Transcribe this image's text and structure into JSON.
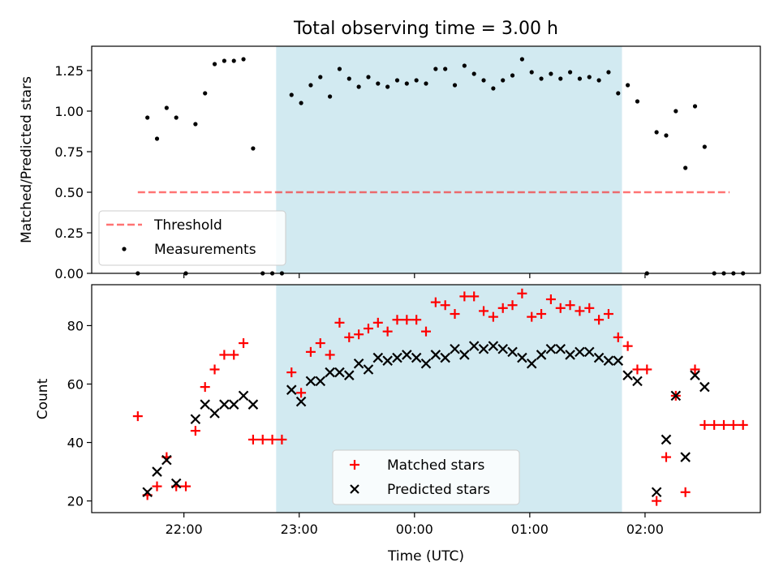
{
  "title": "Total observing time = 3.00 h",
  "xlabel": "Time (UTC)",
  "x_ticks": [
    "22:00",
    "23:00",
    "00:00",
    "01:00",
    "02:00"
  ],
  "colors": {
    "window": "#add8e6",
    "threshold": "#ff0000",
    "measurement": "#000000",
    "matched": "#ff0000",
    "predicted": "#000000"
  },
  "chart_data": [
    {
      "type": "scatter",
      "ylabel": "Matched/Predicted stars",
      "xlim": [
        "21:12",
        "03:00"
      ],
      "ylim": [
        0,
        1.4
      ],
      "y_ticks": [
        "0.00",
        "0.25",
        "0.50",
        "0.75",
        "1.00",
        "1.25"
      ],
      "observing_window": [
        "22:48",
        "01:48"
      ],
      "legend_position": "lower-left",
      "threshold": {
        "name": "Threshold",
        "value": 0.5,
        "x_range": [
          "21:36",
          "02:44"
        ]
      },
      "series": [
        {
          "name": "Measurements",
          "points": [
            [
              "21:36",
              0.0
            ],
            [
              "21:41",
              0.96
            ],
            [
              "21:46",
              0.83
            ],
            [
              "21:51",
              1.02
            ],
            [
              "21:56",
              0.96
            ],
            [
              "22:01",
              0.0
            ],
            [
              "22:06",
              0.92
            ],
            [
              "22:11",
              1.11
            ],
            [
              "22:16",
              1.29
            ],
            [
              "22:21",
              1.31
            ],
            [
              "22:26",
              1.31
            ],
            [
              "22:31",
              1.32
            ],
            [
              "22:36",
              0.77
            ],
            [
              "22:41",
              0.0
            ],
            [
              "22:46",
              0.0
            ],
            [
              "22:51",
              0.0
            ],
            [
              "22:56",
              1.1
            ],
            [
              "23:01",
              1.05
            ],
            [
              "23:06",
              1.16
            ],
            [
              "23:11",
              1.21
            ],
            [
              "23:16",
              1.09
            ],
            [
              "23:21",
              1.26
            ],
            [
              "23:26",
              1.2
            ],
            [
              "23:31",
              1.15
            ],
            [
              "23:36",
              1.21
            ],
            [
              "23:41",
              1.17
            ],
            [
              "23:46",
              1.15
            ],
            [
              "23:51",
              1.19
            ],
            [
              "23:56",
              1.17
            ],
            [
              "00:01",
              1.19
            ],
            [
              "00:06",
              1.17
            ],
            [
              "00:11",
              1.26
            ],
            [
              "00:16",
              1.26
            ],
            [
              "00:21",
              1.16
            ],
            [
              "00:26",
              1.28
            ],
            [
              "00:31",
              1.23
            ],
            [
              "00:36",
              1.19
            ],
            [
              "00:41",
              1.14
            ],
            [
              "00:46",
              1.19
            ],
            [
              "00:51",
              1.22
            ],
            [
              "00:56",
              1.32
            ],
            [
              "01:01",
              1.24
            ],
            [
              "01:06",
              1.2
            ],
            [
              "01:11",
              1.23
            ],
            [
              "01:16",
              1.2
            ],
            [
              "01:21",
              1.24
            ],
            [
              "01:26",
              1.2
            ],
            [
              "01:31",
              1.21
            ],
            [
              "01:36",
              1.19
            ],
            [
              "01:41",
              1.24
            ],
            [
              "01:46",
              1.11
            ],
            [
              "01:51",
              1.16
            ],
            [
              "01:56",
              1.06
            ],
            [
              "02:01",
              0.0
            ],
            [
              "02:06",
              0.87
            ],
            [
              "02:11",
              0.85
            ],
            [
              "02:16",
              1.0
            ],
            [
              "02:21",
              0.65
            ],
            [
              "02:26",
              1.03
            ],
            [
              "02:31",
              0.78
            ],
            [
              "02:36",
              0.0
            ],
            [
              "02:41",
              0.0
            ],
            [
              "02:46",
              0.0
            ],
            [
              "02:51",
              0.0
            ]
          ]
        }
      ]
    },
    {
      "type": "scatter",
      "ylabel": "Count",
      "xlim": [
        "21:12",
        "03:00"
      ],
      "ylim": [
        16,
        94
      ],
      "y_ticks": [
        "20",
        "40",
        "60",
        "80"
      ],
      "observing_window": [
        "22:48",
        "01:48"
      ],
      "legend_position": "lower-center",
      "series": [
        {
          "name": "Matched stars",
          "marker": "plus",
          "points": [
            [
              "21:36",
              49
            ],
            [
              "21:41",
              22
            ],
            [
              "21:46",
              25
            ],
            [
              "21:51",
              35
            ],
            [
              "21:56",
              25
            ],
            [
              "22:01",
              25
            ],
            [
              "22:06",
              44
            ],
            [
              "22:11",
              59
            ],
            [
              "22:16",
              65
            ],
            [
              "22:21",
              70
            ],
            [
              "22:26",
              70
            ],
            [
              "22:31",
              74
            ],
            [
              "22:36",
              41
            ],
            [
              "22:41",
              41
            ],
            [
              "22:46",
              41
            ],
            [
              "22:51",
              41
            ],
            [
              "22:56",
              64
            ],
            [
              "23:01",
              57
            ],
            [
              "23:06",
              71
            ],
            [
              "23:11",
              74
            ],
            [
              "23:16",
              70
            ],
            [
              "23:21",
              81
            ],
            [
              "23:26",
              76
            ],
            [
              "23:31",
              77
            ],
            [
              "23:36",
              79
            ],
            [
              "23:41",
              81
            ],
            [
              "23:46",
              78
            ],
            [
              "23:51",
              82
            ],
            [
              "23:56",
              82
            ],
            [
              "00:01",
              82
            ],
            [
              "00:06",
              78
            ],
            [
              "00:11",
              88
            ],
            [
              "00:16",
              87
            ],
            [
              "00:21",
              84
            ],
            [
              "00:26",
              90
            ],
            [
              "00:31",
              90
            ],
            [
              "00:36",
              85
            ],
            [
              "00:41",
              83
            ],
            [
              "00:46",
              86
            ],
            [
              "00:51",
              87
            ],
            [
              "00:56",
              91
            ],
            [
              "01:01",
              83
            ],
            [
              "01:06",
              84
            ],
            [
              "01:11",
              89
            ],
            [
              "01:16",
              86
            ],
            [
              "01:21",
              87
            ],
            [
              "01:26",
              85
            ],
            [
              "01:31",
              86
            ],
            [
              "01:36",
              82
            ],
            [
              "01:41",
              84
            ],
            [
              "01:46",
              76
            ],
            [
              "01:51",
              73
            ],
            [
              "01:56",
              65
            ],
            [
              "02:01",
              65
            ],
            [
              "02:06",
              20
            ],
            [
              "02:11",
              35
            ],
            [
              "02:16",
              56
            ],
            [
              "02:21",
              23
            ],
            [
              "02:26",
              65
            ],
            [
              "02:31",
              46
            ],
            [
              "02:36",
              46
            ],
            [
              "02:41",
              46
            ],
            [
              "02:46",
              46
            ],
            [
              "02:51",
              46
            ]
          ]
        },
        {
          "name": "Predicted stars",
          "marker": "x",
          "points": [
            [
              "21:41",
              23
            ],
            [
              "21:46",
              30
            ],
            [
              "21:51",
              34
            ],
            [
              "21:56",
              26
            ],
            [
              "22:06",
              48
            ],
            [
              "22:11",
              53
            ],
            [
              "22:16",
              50
            ],
            [
              "22:21",
              53
            ],
            [
              "22:26",
              53
            ],
            [
              "22:31",
              56
            ],
            [
              "22:36",
              53
            ],
            [
              "22:56",
              58
            ],
            [
              "23:01",
              54
            ],
            [
              "23:06",
              61
            ],
            [
              "23:11",
              61
            ],
            [
              "23:16",
              64
            ],
            [
              "23:21",
              64
            ],
            [
              "23:26",
              63
            ],
            [
              "23:31",
              67
            ],
            [
              "23:36",
              65
            ],
            [
              "23:41",
              69
            ],
            [
              "23:46",
              68
            ],
            [
              "23:51",
              69
            ],
            [
              "23:56",
              70
            ],
            [
              "00:01",
              69
            ],
            [
              "00:06",
              67
            ],
            [
              "00:11",
              70
            ],
            [
              "00:16",
              69
            ],
            [
              "00:21",
              72
            ],
            [
              "00:26",
              70
            ],
            [
              "00:31",
              73
            ],
            [
              "00:36",
              72
            ],
            [
              "00:41",
              73
            ],
            [
              "00:46",
              72
            ],
            [
              "00:51",
              71
            ],
            [
              "00:56",
              69
            ],
            [
              "01:01",
              67
            ],
            [
              "01:06",
              70
            ],
            [
              "01:11",
              72
            ],
            [
              "01:16",
              72
            ],
            [
              "01:21",
              70
            ],
            [
              "01:26",
              71
            ],
            [
              "01:31",
              71
            ],
            [
              "01:36",
              69
            ],
            [
              "01:41",
              68
            ],
            [
              "01:46",
              68
            ],
            [
              "01:51",
              63
            ],
            [
              "01:56",
              61
            ],
            [
              "02:06",
              23
            ],
            [
              "02:11",
              41
            ],
            [
              "02:16",
              56
            ],
            [
              "02:21",
              35
            ],
            [
              "02:26",
              63
            ],
            [
              "02:31",
              59
            ]
          ]
        }
      ]
    }
  ]
}
